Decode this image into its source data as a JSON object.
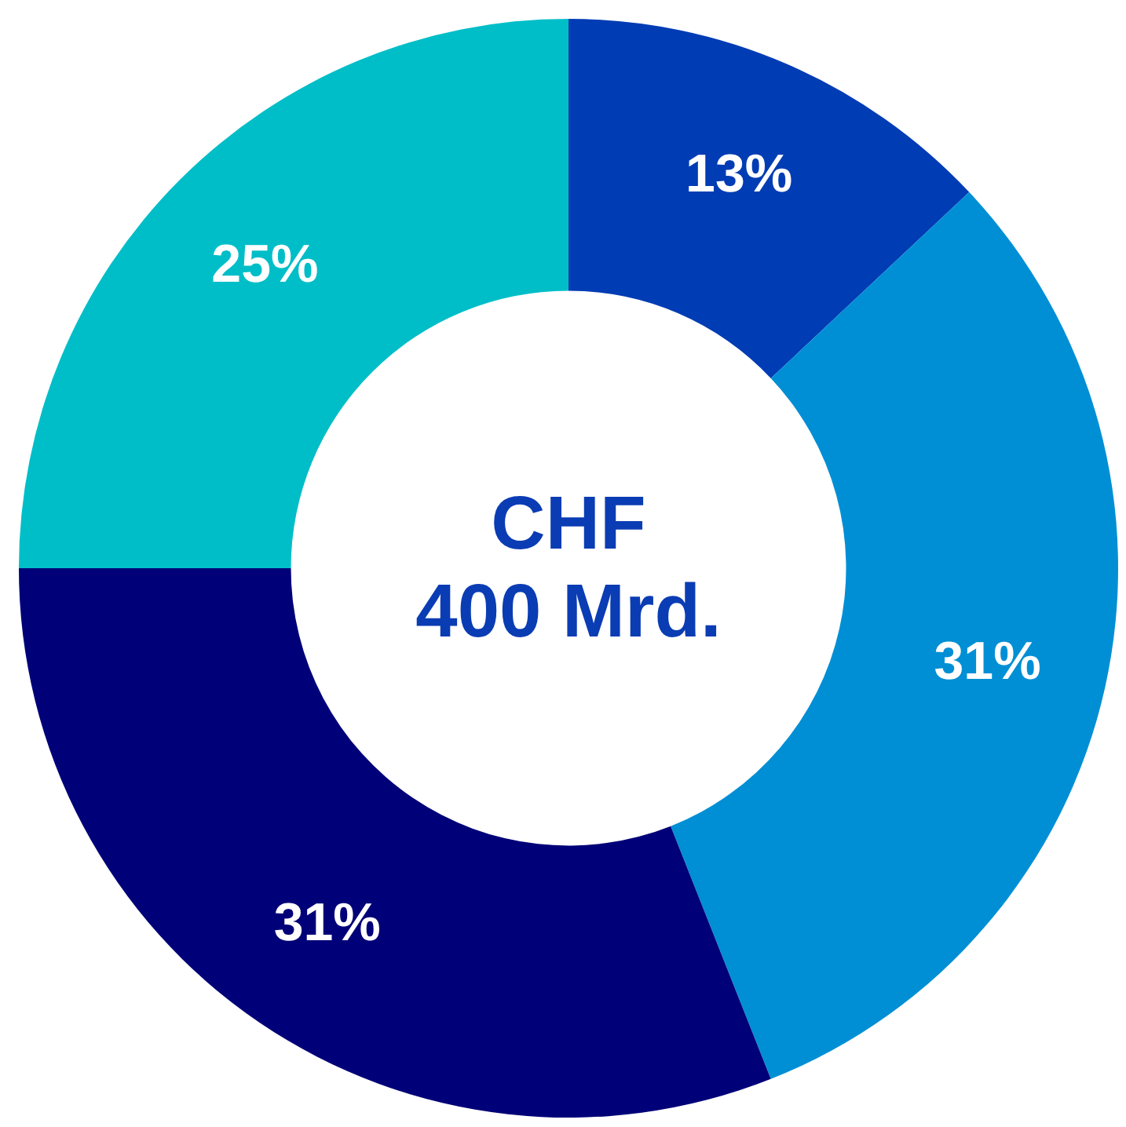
{
  "chart_data": {
    "type": "donut",
    "categories": [
      null,
      null,
      null,
      null
    ],
    "values": [
      13,
      31,
      31,
      25
    ],
    "colors": [
      "#003cb4",
      "#008fd5",
      "#000078",
      "#00bec8"
    ],
    "value_labels": [
      "13%",
      "31%",
      "31%",
      "25%"
    ],
    "annotations": [
      "CHF",
      "400 Mrd."
    ]
  }
}
